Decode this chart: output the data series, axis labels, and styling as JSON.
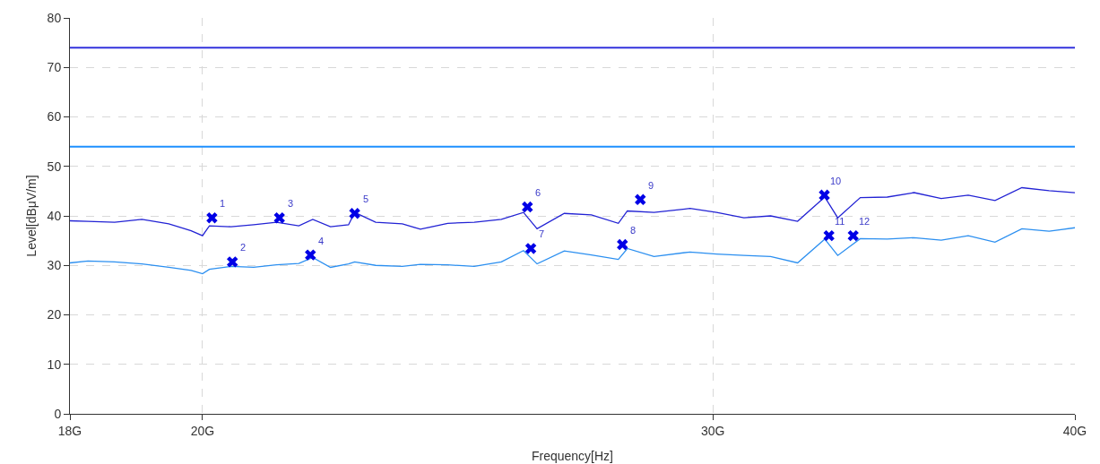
{
  "chart_data": {
    "type": "line",
    "xlabel": "Frequency[Hz]",
    "ylabel": "Level[dBμV/m]",
    "log": "x",
    "grid": true,
    "xlim": [
      18,
      40
    ],
    "xticks": [
      {
        "value": 18,
        "label": "18G"
      },
      {
        "value": 20,
        "label": "20G"
      },
      {
        "value": 30,
        "label": "30G"
      },
      {
        "value": 40,
        "label": "40G"
      }
    ],
    "ylim": [
      0,
      80
    ],
    "yticks": [
      0,
      10,
      20,
      30,
      40,
      50,
      60,
      70,
      80
    ],
    "x": [
      18.0,
      18.26,
      18.65,
      19.06,
      19.47,
      19.82,
      20.0,
      20.11,
      20.46,
      20.83,
      21.21,
      21.59,
      21.83,
      22.14,
      22.46,
      22.57,
      22.95,
      23.44,
      23.78,
      24.3,
      24.82,
      25.36,
      25.81,
      26.09,
      26.66,
      27.24,
      27.83,
      28.03,
      28.63,
      29.46,
      30.09,
      30.75,
      31.41,
      32.09,
      32.79,
      33.13,
      33.73,
      34.46,
      35.2,
      35.97,
      36.75,
      37.54,
      38.35,
      39.19,
      40.0
    ],
    "series": [
      {
        "color": "#2222d4",
        "line_style": "solid",
        "values": [
          39,
          38.9,
          38.7,
          39.3,
          38.4,
          37,
          36,
          38,
          37.8,
          38.2,
          38.7,
          38,
          39.3,
          37.8,
          38.2,
          40.7,
          38.7,
          38.4,
          37.3,
          38.5,
          38.7,
          39.3,
          40.7,
          37.4,
          40.5,
          40.2,
          38.5,
          41,
          40.7,
          41.5,
          40.7,
          39.6,
          40,
          38.9,
          43.8,
          39.6,
          43.7,
          43.8,
          44.7,
          43.5,
          44.2,
          43.1,
          45.7,
          45.1,
          44.7
        ]
      },
      {
        "color": "#2b8ff0",
        "line_style": "solid",
        "values": [
          30.5,
          30.9,
          30.7,
          30.3,
          29.6,
          29,
          28.3,
          29.2,
          29.8,
          29.6,
          30.1,
          30.4,
          31.6,
          29.6,
          30.3,
          30.7,
          30,
          29.8,
          30.2,
          30.1,
          29.8,
          30.7,
          33,
          30.3,
          32.9,
          32.1,
          31.2,
          33.4,
          31.8,
          32.7,
          32.3,
          32,
          31.8,
          30.5,
          35.3,
          32,
          35.4,
          35.3,
          35.6,
          35.1,
          36,
          34.7,
          37.4,
          36.9,
          37.6
        ]
      },
      {
        "type": "scatter",
        "color": "#0000e6",
        "marker": "cross",
        "x": [
          20.15,
          20.48,
          21.26,
          21.79,
          22.57,
          25.89,
          25.96,
          27.92,
          28.32,
          32.78,
          32.9,
          33.54
        ],
        "values": [
          39.6,
          30.7,
          39.6,
          32.1,
          40.5,
          41.8,
          33.4,
          34.2,
          43.3,
          44.2,
          36,
          36
        ]
      }
    ],
    "ref_lines": [
      {
        "axis": "y",
        "value": 74,
        "color": "#3333dd",
        "line_style": "solid"
      },
      {
        "axis": "y",
        "value": 54,
        "color": "#1e90ff",
        "line_style": "solid"
      }
    ],
    "annotations": [
      {
        "text": "1",
        "x": 20.15,
        "y": 39.6
      },
      {
        "text": "2",
        "x": 20.48,
        "y": 30.7
      },
      {
        "text": "3",
        "x": 21.26,
        "y": 39.6
      },
      {
        "text": "4",
        "x": 21.79,
        "y": 32.1
      },
      {
        "text": "5",
        "x": 22.57,
        "y": 40.5
      },
      {
        "text": "6",
        "x": 25.89,
        "y": 41.8
      },
      {
        "text": "7",
        "x": 25.96,
        "y": 33.4
      },
      {
        "text": "8",
        "x": 27.92,
        "y": 34.2
      },
      {
        "text": "9",
        "x": 28.32,
        "y": 43.3
      },
      {
        "text": "10",
        "x": 32.78,
        "y": 44.2
      },
      {
        "text": "11",
        "x": 32.9,
        "y": 36
      },
      {
        "text": "12",
        "x": 33.54,
        "y": 36
      }
    ]
  }
}
